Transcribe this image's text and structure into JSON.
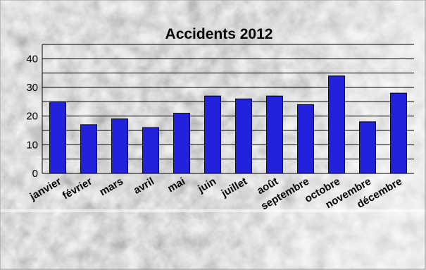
{
  "chart_data": {
    "type": "bar",
    "title": "Accidents 2012",
    "xlabel": "",
    "ylabel": "",
    "categories": [
      "janvier",
      "février",
      "mars",
      "avril",
      "mai",
      "juin",
      "juillet",
      "août",
      "septembre",
      "octobre",
      "novembre",
      "décembre"
    ],
    "values": [
      25,
      17,
      19,
      16,
      21,
      27,
      26,
      27,
      24,
      34,
      18,
      28
    ],
    "ylim": [
      0,
      45
    ],
    "yticks": [
      "0",
      "10",
      "20",
      "30",
      "40"
    ],
    "grid": true,
    "legend": "none",
    "bar_color": "#2222dd",
    "bar_edge_color": "#000000"
  }
}
